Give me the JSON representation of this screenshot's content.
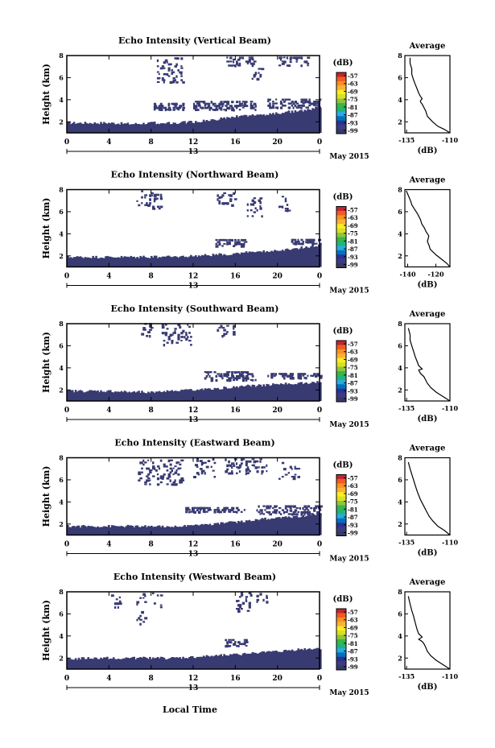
{
  "figure": {
    "xlabel": "Local Time",
    "date_label": "May 2015",
    "colorbar_unit": "(dB)",
    "colorbar_ticks": [
      "-57",
      "-63",
      "-69",
      "-75",
      "-81",
      "-87",
      "-93",
      "-99"
    ],
    "colorbar_colors": [
      "#c0272d",
      "#f15a24",
      "#f7931e",
      "#fbb03b",
      "#fcee21",
      "#d9e021",
      "#8cc63f",
      "#39b54a",
      "#22b573",
      "#29abe2",
      "#0071bc",
      "#2e3192",
      "#3b3d80",
      "#373866"
    ],
    "heatmap_color": "#383a72",
    "x_ticks": [
      "0",
      "4",
      "8",
      "12",
      "16",
      "20",
      "0"
    ],
    "day_label": "13",
    "y_ticks": [
      "2",
      "4",
      "6",
      "8"
    ],
    "ylabel": "Height (km)",
    "avg_title": "Average",
    "avg_xlabel": "(dB)"
  },
  "chart_data": [
    {
      "type": "heatmap",
      "title": "Echo Intensity (Vertical Beam)",
      "ylabel": "Height (km)",
      "xlabel": "",
      "xlim": [
        0,
        24
      ],
      "ylim": [
        1,
        8
      ],
      "lower_layer_top_km": [
        [
          0,
          1.9
        ],
        [
          2,
          1.9
        ],
        [
          4,
          1.9
        ],
        [
          6,
          1.8
        ],
        [
          8,
          1.9
        ],
        [
          10,
          1.9
        ],
        [
          12,
          2.0
        ],
        [
          14,
          2.2
        ],
        [
          16,
          2.5
        ],
        [
          18,
          2.6
        ],
        [
          20,
          2.8
        ],
        [
          22,
          3.0
        ],
        [
          24,
          3.3
        ]
      ],
      "mid_echo_km": [
        [
          8,
          11,
          3.0,
          3.6
        ],
        [
          12,
          18,
          3.0,
          3.9
        ],
        [
          19,
          24,
          3.2,
          4.0
        ]
      ],
      "upper_echo_km": [
        [
          8.5,
          11,
          5.5,
          7.8
        ],
        [
          15,
          18,
          7.0,
          7.8
        ],
        [
          17.5,
          18.5,
          5.8,
          7.2
        ],
        [
          20,
          23,
          7.0,
          7.8
        ]
      ],
      "avg_profile": {
        "xticks": [
          "-135",
          "-110"
        ],
        "xlim": [
          -136,
          -110
        ],
        "ylim": [
          1,
          8
        ],
        "x": [
          -110,
          -113,
          -117,
          -120,
          -123,
          -124,
          -125,
          -126,
          -127,
          -127,
          -126,
          -127,
          -128,
          -129,
          -130,
          -131,
          -132,
          -132,
          -133,
          -133
        ],
        "y": [
          1.0,
          1.3,
          1.6,
          2.0,
          2.5,
          3.0,
          3.3,
          3.6,
          3.8,
          3.9,
          4.1,
          4.3,
          4.6,
          5.0,
          5.4,
          5.8,
          6.3,
          6.8,
          7.3,
          7.8
        ]
      }
    },
    {
      "type": "heatmap",
      "title": "Echo Intensity (Northward Beam)",
      "ylabel": "Height (km)",
      "xlabel": "",
      "xlim": [
        0,
        24
      ],
      "ylim": [
        1,
        8
      ],
      "lower_layer_top_km": [
        [
          0,
          1.9
        ],
        [
          2,
          1.9
        ],
        [
          4,
          1.9
        ],
        [
          6,
          1.9
        ],
        [
          8,
          1.9
        ],
        [
          10,
          1.9
        ],
        [
          12,
          2.0
        ],
        [
          14,
          2.1
        ],
        [
          16,
          2.2
        ],
        [
          18,
          2.4
        ],
        [
          20,
          2.5
        ],
        [
          22,
          2.7
        ],
        [
          24,
          3.0
        ]
      ],
      "mid_echo_km": [
        [
          14,
          17,
          2.8,
          3.5
        ],
        [
          21,
          24,
          3.0,
          3.5
        ]
      ],
      "upper_echo_km": [
        [
          6.5,
          8,
          6.5,
          7.8
        ],
        [
          8,
          9,
          6.0,
          7.5
        ],
        [
          14,
          16,
          6.5,
          7.6
        ],
        [
          17,
          18.5,
          5.5,
          7.2
        ],
        [
          20,
          21,
          6.0,
          7.4
        ]
      ],
      "avg_profile": {
        "xticks": [
          "-140",
          "-120"
        ],
        "xlim": [
          -142,
          -110
        ],
        "ylim": [
          1,
          8
        ],
        "x": [
          -110,
          -112,
          -116,
          -120,
          -124,
          -125,
          -126,
          -125,
          -127,
          -128,
          -130,
          -131,
          -133,
          -135,
          -137,
          -138,
          -139,
          -140,
          -141
        ],
        "y": [
          1.0,
          1.3,
          1.7,
          2.1,
          2.6,
          3.0,
          3.3,
          3.8,
          4.2,
          4.5,
          4.9,
          5.3,
          5.8,
          6.2,
          6.6,
          7.0,
          7.3,
          7.6,
          7.9
        ]
      }
    },
    {
      "type": "heatmap",
      "title": "Echo Intensity (Southward Beam)",
      "ylabel": "Height (km)",
      "xlabel": "",
      "xlim": [
        0,
        24
      ],
      "ylim": [
        1,
        8
      ],
      "lower_layer_top_km": [
        [
          0,
          1.9
        ],
        [
          2,
          1.9
        ],
        [
          4,
          1.9
        ],
        [
          6,
          1.8
        ],
        [
          8,
          1.8
        ],
        [
          10,
          1.9
        ],
        [
          12,
          2.0
        ],
        [
          14,
          2.1
        ],
        [
          16,
          2.3
        ],
        [
          18,
          2.4
        ],
        [
          20,
          2.5
        ],
        [
          22,
          2.6
        ],
        [
          24,
          2.7
        ]
      ],
      "mid_echo_km": [
        [
          13,
          18,
          2.8,
          3.6
        ],
        [
          19,
          24,
          3.0,
          3.5
        ]
      ],
      "upper_echo_km": [
        [
          7,
          8,
          6.8,
          7.9
        ],
        [
          9,
          12,
          6.0,
          7.8
        ],
        [
          14,
          16,
          6.8,
          7.8
        ]
      ],
      "avg_profile": {
        "xticks": [
          "-135",
          "-110"
        ],
        "xlim": [
          -136,
          -110
        ],
        "ylim": [
          1,
          8
        ],
        "x": [
          -110,
          -114,
          -118,
          -121,
          -123,
          -124,
          -125,
          -127,
          -128,
          -126,
          -128,
          -129,
          -130,
          -131,
          -132,
          -133,
          -133,
          -134
        ],
        "y": [
          1.0,
          1.4,
          1.8,
          2.2,
          2.6,
          2.9,
          3.2,
          3.5,
          3.8,
          3.9,
          4.2,
          4.6,
          5.0,
          5.5,
          6.0,
          6.5,
          7.0,
          7.6
        ]
      }
    },
    {
      "type": "heatmap",
      "title": "Echo Intensity (Eastward Beam)",
      "ylabel": "Height (km)",
      "xlabel": "",
      "xlim": [
        0,
        24
      ],
      "ylim": [
        1,
        8
      ],
      "lower_layer_top_km": [
        [
          0,
          1.8
        ],
        [
          2,
          1.8
        ],
        [
          4,
          1.8
        ],
        [
          6,
          1.8
        ],
        [
          8,
          1.8
        ],
        [
          10,
          1.8
        ],
        [
          12,
          1.9
        ],
        [
          14,
          2.0
        ],
        [
          16,
          2.2
        ],
        [
          18,
          2.4
        ],
        [
          20,
          2.6
        ],
        [
          22,
          2.7
        ],
        [
          24,
          2.9
        ]
      ],
      "mid_echo_km": [
        [
          11,
          17,
          3.0,
          3.5
        ],
        [
          18,
          24,
          2.8,
          3.6
        ]
      ],
      "upper_echo_km": [
        [
          6.5,
          11,
          5.5,
          7.8
        ],
        [
          12,
          14,
          6.0,
          7.8
        ],
        [
          15,
          19,
          6.5,
          7.8
        ],
        [
          20,
          22,
          6.0,
          7.6
        ]
      ],
      "avg_profile": {
        "xticks": [
          "-135",
          "-110"
        ],
        "xlim": [
          -136,
          -110
        ],
        "ylim": [
          1,
          8
        ],
        "x": [
          -110,
          -113,
          -117,
          -120,
          -122,
          -123,
          -124,
          -125,
          -126,
          -127,
          -128,
          -129,
          -130,
          -131,
          -132,
          -133,
          -134
        ],
        "y": [
          1.0,
          1.4,
          1.8,
          2.3,
          2.7,
          3.0,
          3.3,
          3.6,
          3.9,
          4.2,
          4.6,
          5.0,
          5.5,
          6.0,
          6.5,
          7.0,
          7.6
        ]
      }
    },
    {
      "type": "heatmap",
      "title": "Echo Intensity (Westward Beam)",
      "ylabel": "Height (km)",
      "xlabel": "Local Time",
      "xlim": [
        0,
        24
      ],
      "ylim": [
        1,
        8
      ],
      "lower_layer_top_km": [
        [
          0,
          1.9
        ],
        [
          2,
          2.0
        ],
        [
          4,
          2.0
        ],
        [
          6,
          2.0
        ],
        [
          8,
          2.0
        ],
        [
          10,
          2.0
        ],
        [
          12,
          2.1
        ],
        [
          14,
          2.2
        ],
        [
          16,
          2.3
        ],
        [
          18,
          2.5
        ],
        [
          20,
          2.6
        ],
        [
          22,
          2.8
        ],
        [
          24,
          2.9
        ]
      ],
      "mid_echo_km": [
        [
          15,
          17,
          3.0,
          3.6
        ]
      ],
      "upper_echo_km": [
        [
          4,
          5,
          6.5,
          7.8
        ],
        [
          6.5,
          7.5,
          5.0,
          7.8
        ],
        [
          8,
          9,
          6.5,
          7.8
        ],
        [
          16,
          17.5,
          6.0,
          7.8
        ],
        [
          18,
          19,
          7.0,
          7.8
        ]
      ],
      "avg_profile": {
        "xticks": [
          "-135",
          "-110"
        ],
        "xlim": [
          -136,
          -110
        ],
        "ylim": [
          1,
          8
        ],
        "x": [
          -110,
          -114,
          -118,
          -121,
          -123,
          -124,
          -125,
          -126,
          -128,
          -126,
          -128,
          -129,
          -130,
          -131,
          -132,
          -133,
          -134
        ],
        "y": [
          1.0,
          1.4,
          1.8,
          2.2,
          2.6,
          3.0,
          3.3,
          3.5,
          3.7,
          3.9,
          4.2,
          4.6,
          5.2,
          5.8,
          6.3,
          6.9,
          7.6
        ]
      }
    }
  ]
}
